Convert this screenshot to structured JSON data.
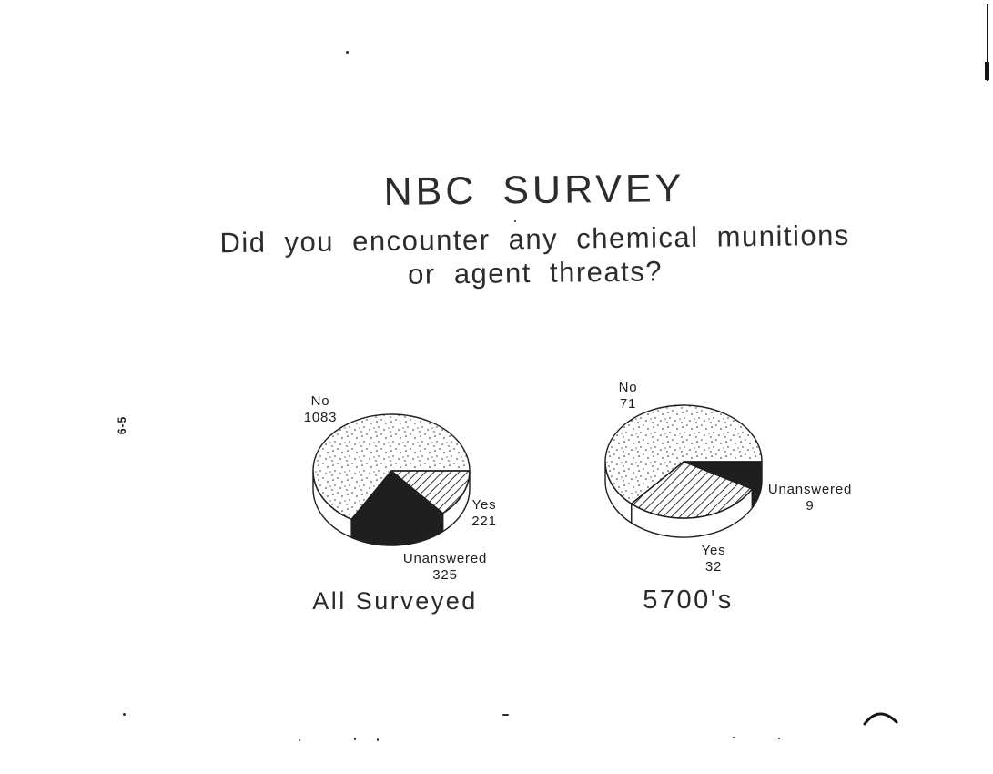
{
  "page": {
    "title": "NBC SURVEY",
    "question_line1": "Did you encounter any chemical munitions",
    "question_line2": "or agent threats?",
    "page_number": "6-5"
  },
  "chart_data": [
    {
      "type": "pie",
      "title": "All Surveyed",
      "style": "3d-pie",
      "start_angle_deg": 0,
      "direction": "clockwise",
      "slices": [
        {
          "label": "Yes",
          "value": 221,
          "pattern": "hatch"
        },
        {
          "label": "Unanswered",
          "value": 325,
          "pattern": "solid"
        },
        {
          "label": "No",
          "value": 1083,
          "pattern": "stipple"
        }
      ]
    },
    {
      "type": "pie",
      "title": "5700's",
      "style": "3d-pie",
      "start_angle_deg": 0,
      "direction": "clockwise",
      "slices": [
        {
          "label": "Unanswered",
          "value": 9,
          "pattern": "solid"
        },
        {
          "label": "Yes",
          "value": 32,
          "pattern": "hatch"
        },
        {
          "label": "No",
          "value": 71,
          "pattern": "stipple"
        }
      ]
    }
  ],
  "colors": {
    "ink": "#1f1f1f",
    "paper": "#ffffff"
  }
}
